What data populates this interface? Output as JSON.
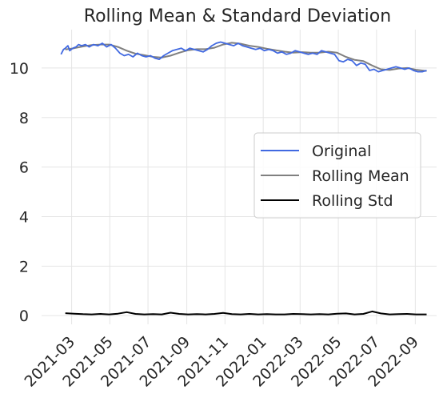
{
  "chart_data": {
    "type": "line",
    "title": "Rolling Mean & Standard Deviation",
    "xlabel": "",
    "ylabel": "",
    "x_range": [
      "2021-01-12",
      "2022-10-05"
    ],
    "ylim": [
      -0.35,
      11.55
    ],
    "y_ticks": [
      0,
      2,
      4,
      6,
      8,
      10
    ],
    "x_ticks": [
      "2021-03",
      "2021-05",
      "2021-07",
      "2021-09",
      "2021-11",
      "2022-01",
      "2022-03",
      "2022-05",
      "2022-07",
      "2022-09"
    ],
    "grid": true,
    "legend_position": "center-right",
    "series": [
      {
        "name": "Original",
        "color": "#4169e1",
        "x": [
          "2021-02-12",
          "2021-02-16",
          "2021-02-19",
          "2021-02-23",
          "2021-02-26",
          "2021-03-03",
          "2021-03-08",
          "2021-03-12",
          "2021-03-17",
          "2021-03-23",
          "2021-03-29",
          "2021-04-05",
          "2021-04-12",
          "2021-04-19",
          "2021-04-26",
          "2021-05-03",
          "2021-05-10",
          "2021-05-17",
          "2021-05-24",
          "2021-05-31",
          "2021-06-07",
          "2021-06-14",
          "2021-06-21",
          "2021-06-28",
          "2021-07-05",
          "2021-07-12",
          "2021-07-19",
          "2021-07-26",
          "2021-08-02",
          "2021-08-09",
          "2021-08-16",
          "2021-08-23",
          "2021-08-30",
          "2021-09-06",
          "2021-09-13",
          "2021-09-20",
          "2021-09-27",
          "2021-10-04",
          "2021-10-11",
          "2021-10-18",
          "2021-10-25",
          "2021-11-01",
          "2021-11-08",
          "2021-11-15",
          "2021-11-22",
          "2021-11-29",
          "2021-12-06",
          "2021-12-13",
          "2021-12-20",
          "2021-12-27",
          "2022-01-03",
          "2022-01-10",
          "2022-01-17",
          "2022-01-24",
          "2022-01-31",
          "2022-02-07",
          "2022-02-14",
          "2022-02-21",
          "2022-02-28",
          "2022-03-07",
          "2022-03-14",
          "2022-03-21",
          "2022-03-28",
          "2022-04-04",
          "2022-04-11",
          "2022-04-18",
          "2022-04-25",
          "2022-05-02",
          "2022-05-09",
          "2022-05-16",
          "2022-05-23",
          "2022-05-30",
          "2022-06-06",
          "2022-06-13",
          "2022-06-20",
          "2022-06-27",
          "2022-07-04",
          "2022-07-11",
          "2022-07-18",
          "2022-07-25",
          "2022-08-01",
          "2022-08-08",
          "2022-08-15",
          "2022-08-22",
          "2022-08-29",
          "2022-09-05",
          "2022-09-12",
          "2022-09-19"
        ],
        "y": [
          10.55,
          10.75,
          10.8,
          10.9,
          10.7,
          10.8,
          10.85,
          10.95,
          10.9,
          10.95,
          10.85,
          10.95,
          10.9,
          11.0,
          10.85,
          10.95,
          10.8,
          10.6,
          10.5,
          10.55,
          10.45,
          10.6,
          10.5,
          10.45,
          10.5,
          10.4,
          10.35,
          10.5,
          10.6,
          10.7,
          10.75,
          10.8,
          10.7,
          10.8,
          10.75,
          10.7,
          10.65,
          10.75,
          10.9,
          11.0,
          11.05,
          11.0,
          10.95,
          10.9,
          11.0,
          10.9,
          10.85,
          10.8,
          10.75,
          10.8,
          10.7,
          10.75,
          10.7,
          10.6,
          10.65,
          10.55,
          10.6,
          10.7,
          10.65,
          10.6,
          10.55,
          10.6,
          10.55,
          10.7,
          10.65,
          10.6,
          10.55,
          10.3,
          10.25,
          10.35,
          10.3,
          10.1,
          10.2,
          10.15,
          9.9,
          9.95,
          9.85,
          9.9,
          9.95,
          10.0,
          10.05,
          10.0,
          9.95,
          10.0,
          9.9,
          9.85,
          9.85,
          9.9
        ]
      },
      {
        "name": "Rolling Mean",
        "color": "#808080",
        "x": [
          "2021-02-19",
          "2021-03-05",
          "2021-03-19",
          "2021-04-02",
          "2021-04-16",
          "2021-04-30",
          "2021-05-14",
          "2021-05-28",
          "2021-06-11",
          "2021-06-25",
          "2021-07-09",
          "2021-07-23",
          "2021-08-06",
          "2021-08-20",
          "2021-09-03",
          "2021-09-17",
          "2021-10-01",
          "2021-10-15",
          "2021-10-29",
          "2021-11-12",
          "2021-11-26",
          "2021-12-10",
          "2021-12-24",
          "2022-01-07",
          "2022-01-21",
          "2022-02-04",
          "2022-02-18",
          "2022-03-04",
          "2022-03-18",
          "2022-04-01",
          "2022-04-15",
          "2022-04-29",
          "2022-05-13",
          "2022-05-27",
          "2022-06-10",
          "2022-06-24",
          "2022-07-08",
          "2022-07-22",
          "2022-08-05",
          "2022-08-19",
          "2022-09-02",
          "2022-09-19"
        ],
        "y": [
          10.75,
          10.8,
          10.87,
          10.93,
          10.95,
          10.95,
          10.85,
          10.7,
          10.58,
          10.52,
          10.45,
          10.42,
          10.5,
          10.62,
          10.72,
          10.76,
          10.76,
          10.82,
          10.95,
          11.02,
          10.98,
          10.9,
          10.85,
          10.78,
          10.72,
          10.66,
          10.62,
          10.64,
          10.62,
          10.62,
          10.66,
          10.62,
          10.45,
          10.33,
          10.28,
          10.1,
          9.95,
          9.92,
          9.98,
          10.0,
          9.93,
          9.88
        ]
      },
      {
        "name": "Rolling Std",
        "color": "#000000",
        "x": [
          "2021-02-19",
          "2021-03-05",
          "2021-03-19",
          "2021-04-02",
          "2021-04-16",
          "2021-04-30",
          "2021-05-14",
          "2021-05-28",
          "2021-06-11",
          "2021-06-25",
          "2021-07-09",
          "2021-07-23",
          "2021-08-06",
          "2021-08-20",
          "2021-09-03",
          "2021-09-17",
          "2021-10-01",
          "2021-10-15",
          "2021-10-29",
          "2021-11-12",
          "2021-11-26",
          "2021-12-10",
          "2021-12-24",
          "2022-01-07",
          "2022-01-21",
          "2022-02-04",
          "2022-02-18",
          "2022-03-04",
          "2022-03-18",
          "2022-04-01",
          "2022-04-15",
          "2022-04-29",
          "2022-05-13",
          "2022-05-27",
          "2022-06-10",
          "2022-06-24",
          "2022-07-08",
          "2022-07-22",
          "2022-08-05",
          "2022-08-19",
          "2022-09-02",
          "2022-09-19"
        ],
        "y": [
          0.1,
          0.08,
          0.06,
          0.05,
          0.07,
          0.05,
          0.08,
          0.14,
          0.07,
          0.05,
          0.06,
          0.05,
          0.12,
          0.07,
          0.05,
          0.06,
          0.05,
          0.07,
          0.11,
          0.06,
          0.05,
          0.07,
          0.05,
          0.06,
          0.05,
          0.05,
          0.07,
          0.06,
          0.05,
          0.06,
          0.05,
          0.08,
          0.09,
          0.05,
          0.07,
          0.17,
          0.09,
          0.05,
          0.06,
          0.07,
          0.05,
          0.05
        ]
      }
    ]
  }
}
